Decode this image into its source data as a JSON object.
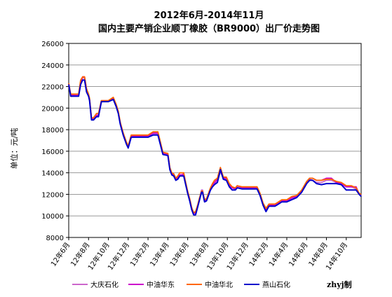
{
  "chart_data": {
    "type": "line",
    "title": "2012年6月-2014年11月",
    "subtitle": "国内主要产销企业顺丁橡胶（BR9000）出厂价走势图",
    "ylabel": "单位：元/吨",
    "xlabel": "",
    "ylim": [
      8000,
      26000
    ],
    "yticks": [
      8000,
      10000,
      12000,
      14000,
      16000,
      18000,
      20000,
      22000,
      24000,
      26000
    ],
    "xlim": [
      0,
      29.5
    ],
    "xtick_labels": [
      "12年6月",
      "12年8月",
      "12年10月",
      "12年12月",
      "13年2月",
      "13年4月",
      "13年6月",
      "13年8月",
      "13年10月",
      "13年12月",
      "14年2月",
      "14年4月",
      "14年6月",
      "14年8月",
      "14年10月"
    ],
    "grid": true,
    "legend_position": "bottom",
    "credit": "zhyj制",
    "series": [
      {
        "name": "大庆石化",
        "color": "#cc66cc",
        "x": [
          0,
          0.2,
          1.0,
          1.2,
          1.4,
          1.6,
          1.8,
          2.0,
          2.1,
          2.3,
          2.5,
          2.8,
          3.0,
          3.3,
          3.6,
          4.0,
          4.5,
          4.8,
          5.0,
          5.2,
          5.5,
          5.8,
          6.0,
          6.3,
          6.6,
          6.8,
          7.0,
          7.3,
          7.6,
          8.0,
          8.5,
          9.0,
          9.5,
          10.0,
          10.2,
          10.4,
          10.6,
          10.8,
          11.0,
          11.2,
          11.4,
          11.6,
          11.8,
          12.0,
          12.2,
          12.4,
          12.6,
          12.8,
          13.0,
          13.2,
          13.4,
          13.5,
          13.7,
          13.9,
          14.1,
          14.3,
          14.5,
          14.7,
          15.0,
          15.3,
          15.6,
          15.9,
          16.2,
          16.5,
          16.8,
          17.0,
          17.5,
          18.0,
          18.5,
          19.0,
          19.3,
          19.6,
          19.9,
          20.2,
          20.5,
          20.8,
          21.0,
          21.5,
          22.0,
          22.5,
          23.0,
          23.5,
          24.0,
          24.3,
          24.6,
          25.0,
          25.5,
          26.0,
          26.5,
          27.0,
          27.5,
          28.0,
          28.5,
          29.0,
          29.3,
          29.5
        ],
        "y": [
          22300,
          21200,
          21200,
          22500,
          22800,
          22800,
          21700,
          21200,
          20800,
          19000,
          19000,
          19400,
          19400,
          20700,
          20700,
          20700,
          20900,
          20200,
          19600,
          18600,
          17600,
          16800,
          16400,
          17400,
          17400,
          17400,
          17400,
          17400,
          17400,
          17400,
          17600,
          17600,
          15800,
          15700,
          14400,
          13900,
          13800,
          13400,
          13500,
          13800,
          13800,
          13800,
          13000,
          12200,
          11600,
          10700,
          10200,
          10400,
          10900,
          11600,
          12400,
          12400,
          11400,
          11500,
          12000,
          12500,
          12800,
          13000,
          13200,
          14100,
          13500,
          13400,
          12800,
          12600,
          12500,
          12700,
          12600,
          12600,
          12600,
          12600,
          12000,
          11100,
          10600,
          11000,
          11000,
          11000,
          11100,
          11300,
          11400,
          11600,
          11800,
          12200,
          13000,
          13400,
          13300,
          13100,
          13100,
          13300,
          13300,
          13100,
          13000,
          12700,
          12700,
          12500,
          12000,
          11900
        ]
      },
      {
        "name": "中油华东",
        "color": "#cc00cc",
        "x": [
          0,
          0.2,
          1.0,
          1.2,
          1.4,
          1.6,
          1.8,
          2.0,
          2.1,
          2.3,
          2.5,
          2.8,
          3.0,
          3.3,
          3.6,
          4.0,
          4.5,
          4.8,
          5.0,
          5.2,
          5.5,
          5.8,
          6.0,
          6.3,
          6.6,
          6.8,
          7.0,
          7.3,
          7.6,
          8.0,
          8.5,
          9.0,
          9.5,
          10.0,
          10.2,
          10.4,
          10.6,
          10.8,
          11.0,
          11.2,
          11.4,
          11.6,
          11.8,
          12.0,
          12.2,
          12.4,
          12.6,
          12.8,
          13.0,
          13.2,
          13.4,
          13.5,
          13.7,
          13.9,
          14.1,
          14.3,
          14.5,
          14.7,
          15.0,
          15.3,
          15.6,
          15.9,
          16.2,
          16.5,
          16.8,
          17.0,
          17.5,
          18.0,
          18.5,
          19.0,
          19.3,
          19.6,
          19.9,
          20.2,
          20.5,
          20.8,
          21.0,
          21.5,
          22.0,
          22.5,
          23.0,
          23.5,
          24.0,
          24.3,
          24.6,
          25.0,
          25.5,
          26.0,
          26.5,
          27.0,
          27.5,
          28.0,
          28.5,
          29.0,
          29.3,
          29.5
        ],
        "y": [
          22200,
          21200,
          21200,
          22400,
          22900,
          22900,
          21700,
          21200,
          20800,
          19000,
          19000,
          19300,
          19300,
          20600,
          20600,
          20600,
          20900,
          20200,
          19600,
          18600,
          17600,
          16800,
          16400,
          17400,
          17400,
          17400,
          17400,
          17400,
          17400,
          17400,
          17700,
          17700,
          15800,
          15700,
          14400,
          13900,
          13800,
          13400,
          13600,
          13800,
          13800,
          13900,
          13000,
          12200,
          11500,
          10700,
          10200,
          10300,
          10900,
          11600,
          12300,
          12300,
          11400,
          11500,
          12000,
          12500,
          12900,
          13100,
          13400,
          14400,
          13500,
          13500,
          12900,
          12600,
          12500,
          12800,
          12600,
          12600,
          12600,
          12600,
          12000,
          11100,
          10600,
          11000,
          11000,
          11000,
          11100,
          11400,
          11400,
          11700,
          11800,
          12300,
          13100,
          13500,
          13500,
          13300,
          13300,
          13500,
          13500,
          13100,
          13000,
          12700,
          12700,
          12700,
          12000,
          11900
        ]
      },
      {
        "name": "中油华北",
        "color": "#ff6600",
        "x": [
          0,
          0.2,
          1.0,
          1.2,
          1.4,
          1.6,
          1.8,
          2.0,
          2.1,
          2.3,
          2.5,
          2.8,
          3.0,
          3.3,
          3.6,
          4.0,
          4.5,
          4.8,
          5.0,
          5.2,
          5.5,
          5.8,
          6.0,
          6.3,
          6.6,
          6.8,
          7.0,
          7.3,
          7.6,
          8.0,
          8.5,
          9.0,
          9.5,
          10.0,
          10.2,
          10.4,
          10.6,
          10.8,
          11.0,
          11.2,
          11.4,
          11.6,
          11.8,
          12.0,
          12.2,
          12.4,
          12.6,
          12.8,
          13.0,
          13.2,
          13.4,
          13.5,
          13.7,
          13.9,
          14.1,
          14.3,
          14.5,
          14.7,
          15.0,
          15.3,
          15.6,
          15.9,
          16.2,
          16.5,
          16.8,
          17.0,
          17.5,
          18.0,
          18.5,
          19.0,
          19.3,
          19.6,
          19.9,
          20.2,
          20.5,
          20.8,
          21.0,
          21.5,
          22.0,
          22.5,
          23.0,
          23.5,
          24.0,
          24.3,
          24.6,
          25.0,
          25.5,
          26.0,
          26.5,
          27.0,
          27.5,
          28.0,
          28.5,
          29.0,
          29.3,
          29.5
        ],
        "y": [
          22300,
          21300,
          21300,
          22600,
          22900,
          22900,
          21800,
          21300,
          20900,
          19100,
          19100,
          19500,
          19500,
          20700,
          20700,
          20700,
          21000,
          20300,
          19700,
          18700,
          17700,
          16900,
          16500,
          17500,
          17500,
          17500,
          17500,
          17500,
          17500,
          17500,
          17800,
          17800,
          15900,
          15800,
          14500,
          14000,
          13900,
          13500,
          13700,
          14000,
          14000,
          14000,
          13100,
          12300,
          11600,
          10800,
          10300,
          10400,
          11000,
          11700,
          12300,
          12300,
          11500,
          11600,
          12100,
          12600,
          13000,
          13300,
          13500,
          14500,
          13600,
          13600,
          13000,
          12700,
          12600,
          12800,
          12700,
          12700,
          12700,
          12700,
          12100,
          11200,
          10700,
          11100,
          11100,
          11100,
          11200,
          11500,
          11500,
          11800,
          11900,
          12400,
          13200,
          13500,
          13500,
          13300,
          13300,
          13400,
          13400,
          13200,
          13100,
          12800,
          12800,
          12600,
          12100,
          12000
        ]
      },
      {
        "name": "燕山石化",
        "color": "#0000cc",
        "x": [
          0,
          0.2,
          1.0,
          1.2,
          1.4,
          1.6,
          1.8,
          2.0,
          2.1,
          2.3,
          2.5,
          2.8,
          3.0,
          3.3,
          3.6,
          4.0,
          4.5,
          4.8,
          5.0,
          5.2,
          5.5,
          5.8,
          6.0,
          6.3,
          6.6,
          6.8,
          7.0,
          7.3,
          7.6,
          8.0,
          8.5,
          9.0,
          9.5,
          10.0,
          10.2,
          10.4,
          10.6,
          10.8,
          11.0,
          11.2,
          11.4,
          11.6,
          11.8,
          12.0,
          12.2,
          12.4,
          12.6,
          12.8,
          13.0,
          13.2,
          13.4,
          13.5,
          13.7,
          13.9,
          14.1,
          14.3,
          14.5,
          14.7,
          15.0,
          15.3,
          15.6,
          15.9,
          16.2,
          16.5,
          16.8,
          17.0,
          17.5,
          18.0,
          18.5,
          19.0,
          19.3,
          19.6,
          19.9,
          20.2,
          20.5,
          20.8,
          21.0,
          21.5,
          22.0,
          22.5,
          23.0,
          23.5,
          24.0,
          24.3,
          24.6,
          25.0,
          25.5,
          26.0,
          26.5,
          27.0,
          27.5,
          28.0,
          28.5,
          29.0,
          29.3,
          29.5
        ],
        "y": [
          22200,
          21100,
          21100,
          22200,
          22600,
          22600,
          21500,
          21100,
          20700,
          18900,
          18900,
          19200,
          19200,
          20600,
          20600,
          20600,
          20800,
          20100,
          19500,
          18500,
          17500,
          16700,
          16300,
          17300,
          17300,
          17300,
          17300,
          17300,
          17300,
          17300,
          17500,
          17500,
          15700,
          15600,
          14300,
          13800,
          13700,
          13300,
          13400,
          13700,
          13700,
          13700,
          12900,
          12100,
          11400,
          10600,
          10100,
          10100,
          10800,
          11500,
          12200,
          12200,
          11300,
          11400,
          11900,
          12400,
          12700,
          12900,
          13100,
          14300,
          13400,
          13300,
          12700,
          12400,
          12400,
          12600,
          12500,
          12500,
          12500,
          12500,
          11900,
          11000,
          10400,
          10900,
          10900,
          10900,
          11000,
          11300,
          11300,
          11500,
          11700,
          12200,
          13000,
          13300,
          13300,
          13000,
          12900,
          13000,
          13000,
          13000,
          12900,
          12400,
          12400,
          12400,
          12000,
          11800
        ]
      }
    ]
  }
}
